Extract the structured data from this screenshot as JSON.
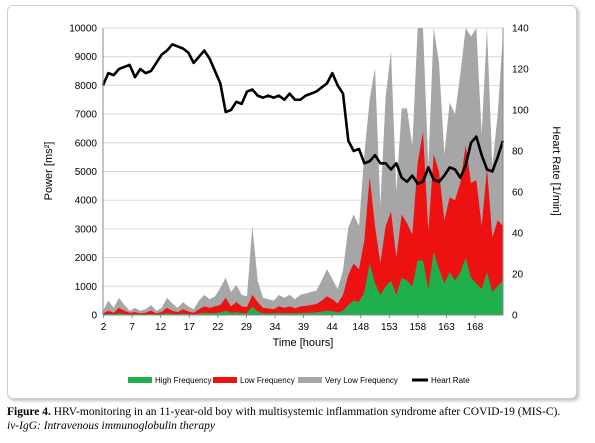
{
  "caption": {
    "label": "Figure 4.",
    "text": " HRV-monitoring in an 11-year-old boy with multisystemic inflammation syndrome after COVID-19 (MIS-C).",
    "note": "iv-IgG: Intravenous immunoglobulin therapy"
  },
  "chart_data": {
    "type": "area",
    "xlabel": "Time [hours]",
    "ylabel_left": "Power [ms²]",
    "ylabel_right": "Heart Rate [1/min]",
    "ylim_left": [
      0,
      10000
    ],
    "ylim_right": [
      0,
      140
    ],
    "yticks_left": [
      "0",
      "1000",
      "2000",
      "3000",
      "4000",
      "5000",
      "6000",
      "7000",
      "8000",
      "9000",
      "10000"
    ],
    "yticks_right": [
      "0",
      "20",
      "40",
      "60",
      "80",
      "100",
      "120",
      "140"
    ],
    "x_tick_labels": [
      "2",
      "7",
      "12",
      "17",
      "22",
      "29",
      "34",
      "39",
      "44",
      "148",
      "153",
      "158",
      "163",
      "168"
    ],
    "legend": [
      "High Frequency",
      "Low Frequency",
      "Very Low Frequency",
      "Heart Rate"
    ],
    "legend_position": "bottom",
    "colors": {
      "high_frequency": "#1fb04d",
      "low_frequency": "#ee1111",
      "very_low_frequency": "#a6a6a6",
      "heart_rate": "#000000"
    },
    "series": [
      {
        "name": "Very Low Frequency",
        "axis": "left",
        "values": [
          150,
          500,
          250,
          600,
          350,
          150,
          250,
          150,
          200,
          350,
          150,
          250,
          600,
          400,
          250,
          450,
          300,
          200,
          500,
          700,
          550,
          650,
          950,
          1300,
          800,
          1050,
          700,
          650,
          3100,
          1200,
          600,
          550,
          500,
          700,
          600,
          700,
          550,
          700,
          750,
          800,
          850,
          1200,
          1600,
          1250,
          900,
          1550,
          3050,
          3500,
          3100,
          5600,
          7500,
          8600,
          3800,
          7600,
          9200,
          4300,
          7200,
          7200,
          5900,
          10000,
          10000,
          5200,
          10000,
          8800,
          5600,
          7400,
          7000,
          8400,
          10000,
          9700,
          10000,
          6300,
          10000,
          5200,
          7000,
          9800
        ]
      },
      {
        "name": "Low Frequency",
        "axis": "left",
        "values": [
          50,
          150,
          80,
          250,
          150,
          80,
          100,
          60,
          80,
          150,
          60,
          100,
          250,
          150,
          100,
          200,
          120,
          80,
          200,
          300,
          250,
          300,
          350,
          600,
          300,
          450,
          300,
          280,
          700,
          450,
          250,
          230,
          200,
          300,
          250,
          300,
          230,
          300,
          320,
          350,
          380,
          500,
          650,
          550,
          400,
          700,
          1400,
          1800,
          1600,
          2600,
          4800,
          3100,
          1800,
          3100,
          3600,
          2000,
          3500,
          3200,
          2800,
          5300,
          6400,
          2900,
          5600,
          5000,
          3300,
          4100,
          4000,
          4600,
          5900,
          4600,
          4700,
          3100,
          5100,
          2700,
          3300,
          3100
        ]
      },
      {
        "name": "High Frequency",
        "axis": "left",
        "values": [
          20,
          40,
          30,
          60,
          40,
          20,
          30,
          20,
          20,
          40,
          20,
          30,
          60,
          40,
          30,
          50,
          30,
          20,
          50,
          80,
          60,
          70,
          90,
          150,
          80,
          100,
          70,
          70,
          300,
          120,
          60,
          55,
          50,
          70,
          60,
          70,
          55,
          70,
          80,
          80,
          90,
          120,
          150,
          130,
          90,
          150,
          350,
          500,
          450,
          800,
          1800,
          1100,
          700,
          1000,
          1200,
          700,
          1300,
          1200,
          1000,
          1900,
          1900,
          900,
          2200,
          1600,
          1100,
          1500,
          1200,
          1500,
          2000,
          1300,
          1100,
          900,
          1500,
          800,
          1000,
          1200
        ]
      },
      {
        "name": "Heart Rate",
        "axis": "right",
        "values": [
          112,
          118,
          117,
          120,
          121,
          122,
          116,
          120,
          118,
          119,
          123,
          127,
          129,
          132,
          131,
          130,
          128,
          123,
          126,
          129,
          125,
          119,
          113,
          99,
          100,
          104,
          103,
          109,
          110,
          107,
          106,
          107,
          106,
          107,
          105,
          108,
          105,
          105,
          107,
          108,
          109,
          111,
          113,
          118,
          112,
          108,
          85,
          80,
          81,
          74,
          75,
          78,
          74,
          74,
          71,
          74,
          67,
          65,
          68,
          64,
          65,
          72,
          66,
          65,
          68,
          72,
          71,
          67,
          73,
          84,
          87,
          78,
          71,
          70,
          77,
          85
        ]
      }
    ]
  }
}
